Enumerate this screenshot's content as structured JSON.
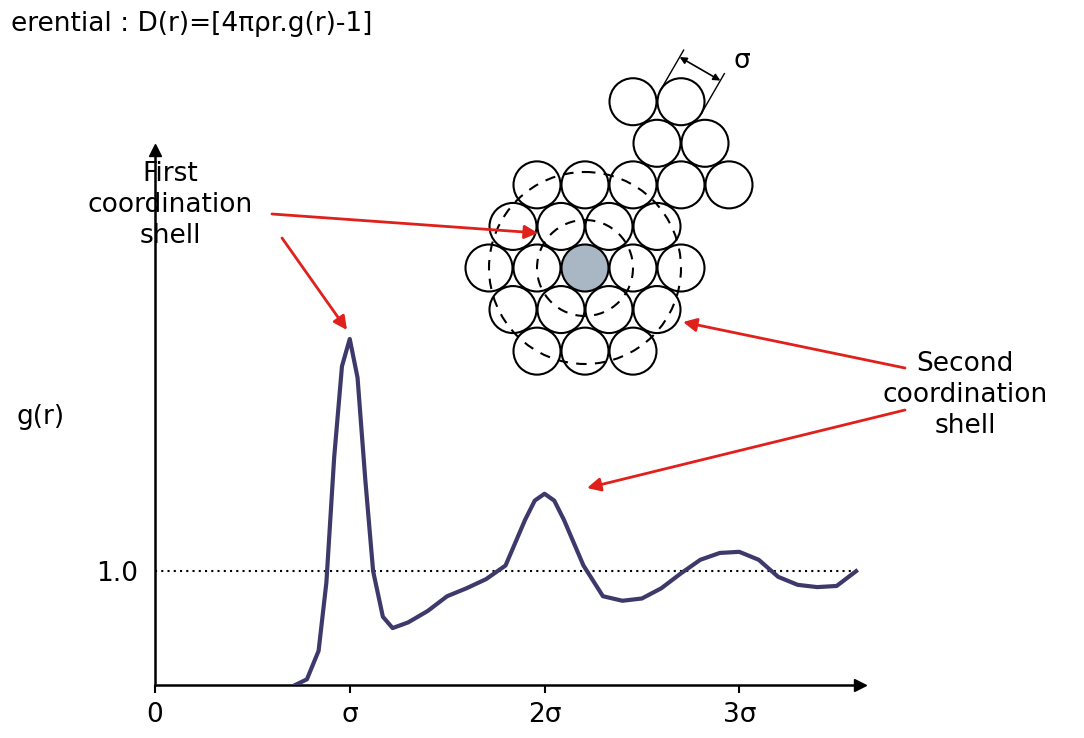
{
  "chart_data": {
    "type": "line",
    "title": "erential : D(r)=[4πρr.g(r)-1]",
    "y_label": "g(r)",
    "x": [
      0.72,
      0.78,
      0.84,
      0.88,
      0.92,
      0.96,
      1.0,
      1.04,
      1.08,
      1.12,
      1.17,
      1.22,
      1.3,
      1.4,
      1.5,
      1.6,
      1.7,
      1.8,
      1.9,
      1.95,
      2.0,
      2.05,
      2.1,
      2.2,
      2.3,
      2.4,
      2.5,
      2.6,
      2.7,
      2.8,
      2.9,
      3.0,
      3.1,
      3.2,
      3.3,
      3.4,
      3.5,
      3.6
    ],
    "values": [
      0.0,
      0.05,
      0.3,
      0.9,
      2.0,
      2.8,
      3.04,
      2.7,
      1.8,
      1.0,
      0.6,
      0.5,
      0.55,
      0.65,
      0.78,
      0.85,
      0.93,
      1.05,
      1.45,
      1.62,
      1.68,
      1.62,
      1.45,
      1.05,
      0.78,
      0.74,
      0.76,
      0.85,
      0.98,
      1.1,
      1.16,
      1.17,
      1.1,
      0.95,
      0.88,
      0.86,
      0.87,
      1.0
    ],
    "color": "#3d3a6b",
    "xlim": [
      0,
      3.62
    ],
    "ylim": [
      0,
      4.7
    ],
    "xticks": [
      0,
      {
        "value": 1,
        "label": "σ"
      },
      {
        "value": 2,
        "label": "2σ"
      },
      {
        "value": 3,
        "label": "3σ"
      }
    ],
    "yticks": [
      {
        "value": 1.0,
        "label": "1.0"
      }
    ],
    "grid": "y",
    "annotations": [
      "First\ncoordination\nshell",
      "Second\ncoordination\nshell"
    ],
    "diagram": {
      "label": "σ"
    }
  }
}
